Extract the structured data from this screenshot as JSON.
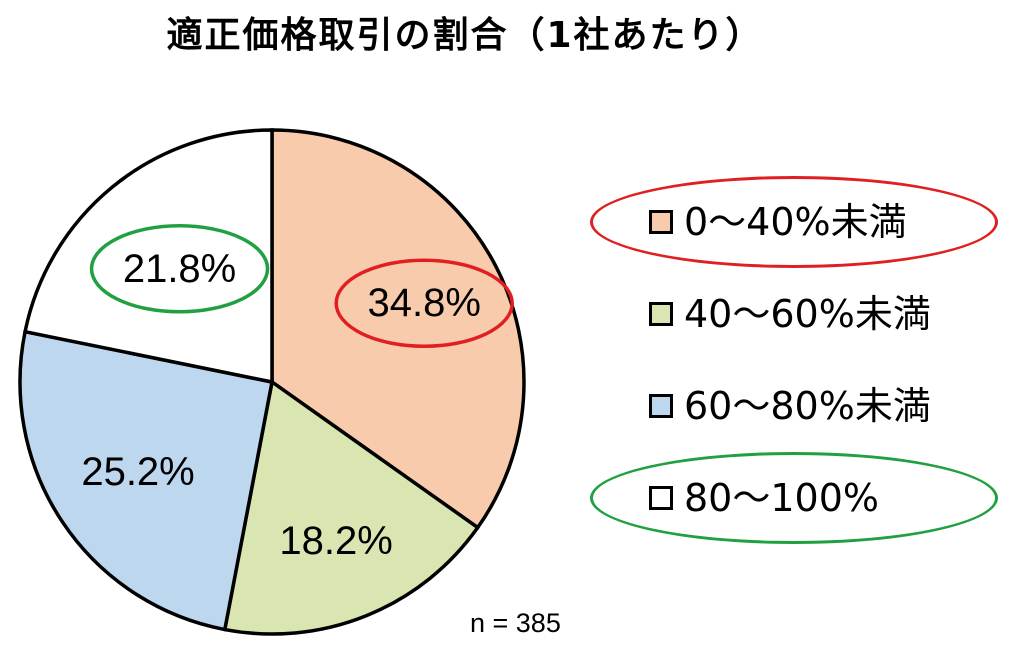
{
  "chart_data": {
    "type": "pie",
    "title": "適正価格取引の割合（1社あたり）",
    "categories": [
      "0～40%未満",
      "40～60%未満",
      "60～80%未満",
      "80～100%"
    ],
    "values": [
      34.8,
      18.2,
      25.2,
      21.8
    ],
    "labels": [
      "34.8%",
      "18.2%",
      "25.2%",
      "21.8%"
    ],
    "colors": [
      "#f8cbad",
      "#d9e6b1",
      "#bdd7ee",
      "#ffffff"
    ],
    "start": "12 o'clock",
    "direction": "clockwise",
    "legend_position": "right",
    "highlighted": [
      {
        "category": "0～40%未満",
        "color": "#e02020"
      },
      {
        "category": "80～100%",
        "color": "#20a040"
      }
    ],
    "note": "n = 385"
  }
}
